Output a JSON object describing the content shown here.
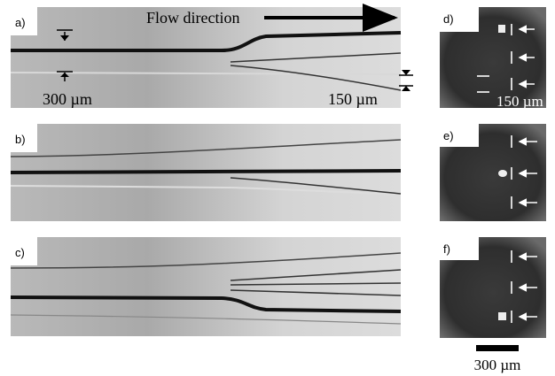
{
  "panels": [
    {
      "label": "a)",
      "texts": [
        "Flow direction",
        "300 µm",
        "150 µm"
      ]
    },
    {
      "label": "b)"
    },
    {
      "label": "c)"
    },
    {
      "label": "d)",
      "texts": [
        "150 µm"
      ]
    },
    {
      "label": "e)"
    },
    {
      "label": "f)"
    }
  ],
  "scale_bar": "300 µm"
}
